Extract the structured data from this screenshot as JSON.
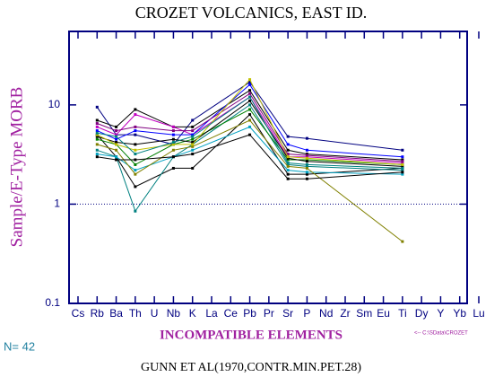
{
  "chart_data": {
    "type": "line",
    "title": "CROZET VOLCANICS, EAST ID.",
    "y_label": "Sample/E-Type MORB",
    "x_label": "INCOMPATIBLE ELEMENTS",
    "count_label": "N= 42",
    "footer": "GUNN ET AL(1970,CONTR.MIN.PET.28)",
    "file_note": "<-- C:\\SData\\CROZET",
    "categories": [
      "Cs",
      "Rb",
      "Ba",
      "Th",
      "U",
      "Nb",
      "K",
      "La",
      "Ce",
      "Pb",
      "Pr",
      "Sr",
      "P",
      "Nd",
      "Zr",
      "Sm",
      "Eu",
      "Ti",
      "Dy",
      "Y",
      "Yb",
      "Lu"
    ],
    "x": [
      "Rb",
      "Ba",
      "Th",
      "Nb",
      "K",
      "Pb",
      "Sr",
      "P",
      "Ti"
    ],
    "ylim": [
      0.1,
      55
    ],
    "yticks": [
      {
        "value": 0.1,
        "label": "0.1"
      },
      1,
      10
    ],
    "log_y": true,
    "reference_line": 1,
    "series": [
      {
        "color": "#000080",
        "values": [
          9.5,
          5,
          5,
          4,
          7,
          17,
          4.8,
          4.6,
          3.5
        ]
      },
      {
        "color": "#000000",
        "values": [
          7,
          6,
          9,
          6,
          6,
          14,
          3.5,
          3.2,
          2.8
        ]
      },
      {
        "color": "#c000c0",
        "values": [
          6,
          5,
          8,
          6,
          5,
          12,
          3,
          3,
          2.6
        ]
      },
      {
        "color": "#000000",
        "values": [
          5,
          3,
          1.5,
          2.3,
          2.3,
          8,
          2,
          2,
          2.3
        ]
      },
      {
        "color": "#008080",
        "values": [
          3.5,
          3,
          0.85,
          3,
          4,
          10,
          2.5,
          2.4,
          2.2
        ]
      },
      {
        "color": "#008000",
        "values": [
          4.5,
          4,
          2.5,
          4,
          4.5,
          9,
          2.8,
          2.8,
          2.5
        ]
      },
      {
        "color": "#0000ff",
        "values": [
          5.5,
          4.5,
          5.5,
          5,
          5,
          16,
          4,
          3.5,
          3
        ]
      },
      {
        "color": "#00a0c0",
        "values": [
          3.2,
          3,
          2.2,
          3,
          3.5,
          6,
          2.2,
          2.1,
          2
        ]
      },
      {
        "color": "#808000",
        "values": [
          4,
          3.5,
          2,
          3.5,
          3.8,
          7,
          2.4,
          2.3,
          0.42
        ]
      },
      {
        "color": "#000000",
        "values": [
          4.8,
          4.2,
          4,
          4.5,
          4.2,
          11,
          2.9,
          2.7,
          2.4
        ]
      },
      {
        "color": "#800080",
        "values": [
          6.5,
          5.5,
          6,
          5.5,
          5.5,
          13,
          3.2,
          3.1,
          2.7
        ]
      },
      {
        "color": "#c0c000",
        "values": [
          5,
          4,
          3.5,
          4,
          4,
          18,
          3,
          2.9,
          2.5
        ]
      },
      {
        "color": "#000000",
        "values": [
          3,
          2.8,
          2.8,
          3,
          3.2,
          5,
          1.8,
          1.8,
          2.1
        ]
      },
      {
        "color": "#008080",
        "values": [
          5.2,
          4.8,
          3.2,
          4.2,
          4.8,
          12,
          2.6,
          2.5,
          2.3
        ]
      }
    ]
  }
}
